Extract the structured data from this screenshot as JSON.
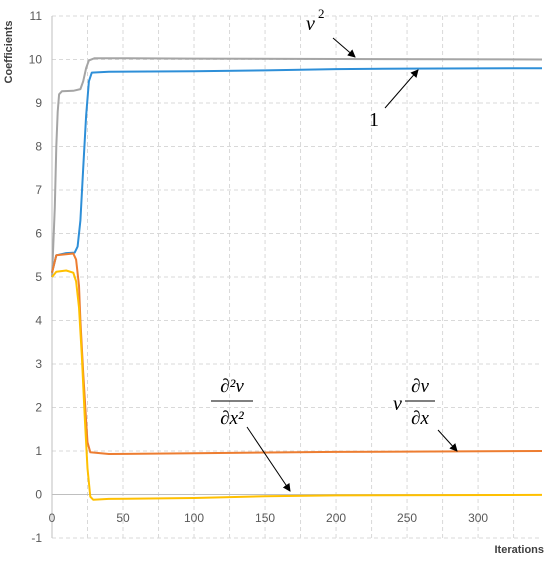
{
  "chart_data": {
    "type": "line",
    "xlabel": "Iterations",
    "ylabel": "Coefficients",
    "xlim": [
      0,
      345
    ],
    "ylim": [
      -1,
      11
    ],
    "xticks": [
      0,
      50,
      100,
      150,
      200,
      250,
      300
    ],
    "yticks": [
      -1,
      0,
      1,
      2,
      3,
      4,
      5,
      6,
      7,
      8,
      9,
      10,
      11
    ],
    "grid": true,
    "series": [
      {
        "name": "v^2",
        "color": "#a5a5a5",
        "points": [
          [
            0,
            5.0
          ],
          [
            2,
            6.6
          ],
          [
            3,
            8.0
          ],
          [
            4,
            8.8
          ],
          [
            5,
            9.2
          ],
          [
            7,
            9.27
          ],
          [
            15,
            9.28
          ],
          [
            20,
            9.32
          ],
          [
            22,
            9.5
          ],
          [
            24,
            9.8
          ],
          [
            26,
            9.98
          ],
          [
            30,
            10.03
          ],
          [
            50,
            10.03
          ],
          [
            100,
            10.02
          ],
          [
            345,
            10.0
          ]
        ]
      },
      {
        "name": "1",
        "color": "#2e8fd8",
        "points": [
          [
            0,
            5.1
          ],
          [
            3,
            5.5
          ],
          [
            10,
            5.55
          ],
          [
            16,
            5.56
          ],
          [
            18,
            5.7
          ],
          [
            20,
            6.3
          ],
          [
            22,
            7.5
          ],
          [
            24,
            8.7
          ],
          [
            26,
            9.5
          ],
          [
            28,
            9.7
          ],
          [
            40,
            9.72
          ],
          [
            100,
            9.73
          ],
          [
            150,
            9.75
          ],
          [
            200,
            9.78
          ],
          [
            250,
            9.79
          ],
          [
            345,
            9.8
          ]
        ]
      },
      {
        "name": "v ∂v/∂x",
        "color": "#ed7d31",
        "points": [
          [
            0,
            5.1
          ],
          [
            3,
            5.5
          ],
          [
            15,
            5.54
          ],
          [
            17,
            5.4
          ],
          [
            19,
            4.8
          ],
          [
            20,
            4.0
          ],
          [
            22,
            2.8
          ],
          [
            24,
            1.7
          ],
          [
            25,
            1.2
          ],
          [
            27,
            0.97
          ],
          [
            40,
            0.93
          ],
          [
            100,
            0.95
          ],
          [
            200,
            0.98
          ],
          [
            345,
            1.0
          ]
        ]
      },
      {
        "name": "∂²v/∂x²",
        "color": "#ffc000",
        "points": [
          [
            0,
            5.0
          ],
          [
            3,
            5.12
          ],
          [
            10,
            5.15
          ],
          [
            15,
            5.1
          ],
          [
            17,
            4.9
          ],
          [
            19,
            4.3
          ],
          [
            21,
            3.2
          ],
          [
            23,
            1.8
          ],
          [
            25,
            0.6
          ],
          [
            27,
            -0.05
          ],
          [
            29,
            -0.12
          ],
          [
            40,
            -0.1
          ],
          [
            100,
            -0.08
          ],
          [
            150,
            -0.04
          ],
          [
            200,
            -0.02
          ],
          [
            345,
            -0.01
          ]
        ]
      }
    ],
    "annotations": [
      {
        "label": "v^2",
        "target_series": "v^2"
      },
      {
        "label": "1",
        "target_series": "1"
      },
      {
        "label": "v ∂v/∂x",
        "target_series": "v ∂v/∂x"
      },
      {
        "label": "∂²v/∂x²",
        "target_series": "∂²v/∂x²"
      }
    ]
  },
  "labels": {
    "v_sym": "v",
    "sup_2": "2",
    "one": "1",
    "partial_2v": "∂²v",
    "partial_x2": "∂x²",
    "partial_v": "∂v",
    "partial_x": "∂x"
  }
}
